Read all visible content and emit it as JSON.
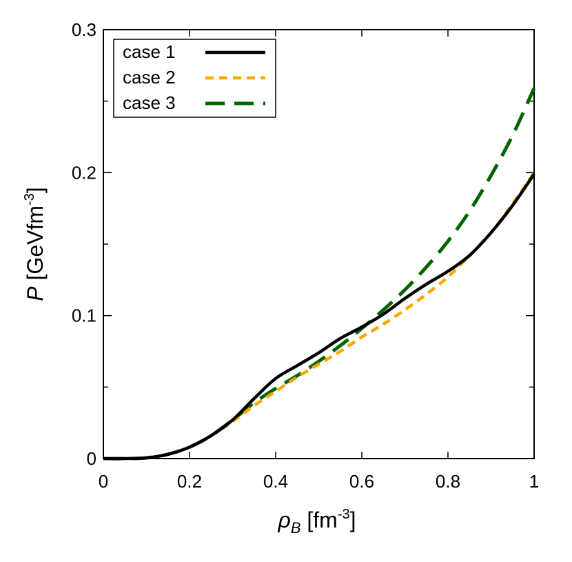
{
  "chart_data": {
    "type": "line",
    "title": "",
    "xlabel": {
      "symbol": "ρ",
      "subscript": "B",
      "unit_prefix": " [fm",
      "unit_exp": "-3",
      "unit_suffix": "]"
    },
    "ylabel": {
      "symbol": "P",
      "unit_prefix": " [GeVfm",
      "unit_exp": "-3",
      "unit_suffix": "]"
    },
    "xlim": [
      0,
      1
    ],
    "ylim": [
      0,
      0.3
    ],
    "xticks": [
      0,
      0.2,
      0.4,
      0.6,
      0.8,
      1
    ],
    "xtick_labels": [
      "0",
      "0.2",
      "0.4",
      "0.6",
      "0.8",
      "1"
    ],
    "yticks": [
      0,
      0.1,
      0.2,
      0.3
    ],
    "ytick_labels": [
      "0",
      "0.1",
      "0.2",
      "0.3"
    ],
    "grid": false,
    "legend_position": "top-left",
    "series": [
      {
        "name": "case 1",
        "color": "#000000",
        "style": "solid",
        "x": [
          0,
          0.05,
          0.1,
          0.15,
          0.2,
          0.25,
          0.3,
          0.35,
          0.4,
          0.45,
          0.5,
          0.55,
          0.6,
          0.65,
          0.7,
          0.75,
          0.8,
          0.85,
          0.9,
          0.95,
          1.0
        ],
        "y": [
          0,
          0,
          0.0005,
          0.003,
          0.008,
          0.016,
          0.027,
          0.042,
          0.056,
          0.065,
          0.074,
          0.084,
          0.092,
          0.101,
          0.112,
          0.122,
          0.131,
          0.142,
          0.158,
          0.177,
          0.199
        ]
      },
      {
        "name": "case 2",
        "color": "#ffa500",
        "style": "dotted",
        "x": [
          0,
          0.05,
          0.1,
          0.15,
          0.2,
          0.25,
          0.3,
          0.35,
          0.4,
          0.45,
          0.5,
          0.55,
          0.6,
          0.65,
          0.7,
          0.75,
          0.8,
          0.85,
          0.9,
          0.95,
          1.0
        ],
        "y": [
          0,
          0,
          0.0005,
          0.003,
          0.008,
          0.016,
          0.026,
          0.037,
          0.047,
          0.057,
          0.066,
          0.075,
          0.085,
          0.094,
          0.104,
          0.115,
          0.127,
          0.142,
          0.158,
          0.178,
          0.2
        ]
      },
      {
        "name": "case 3",
        "color": "#006400",
        "style": "dashed",
        "x": [
          0,
          0.05,
          0.1,
          0.15,
          0.2,
          0.25,
          0.3,
          0.35,
          0.4,
          0.45,
          0.5,
          0.55,
          0.6,
          0.65,
          0.7,
          0.75,
          0.8,
          0.85,
          0.9,
          0.95,
          1.0
        ],
        "y": [
          0,
          0,
          0.0005,
          0.003,
          0.008,
          0.016,
          0.027,
          0.039,
          0.049,
          0.058,
          0.068,
          0.079,
          0.091,
          0.104,
          0.118,
          0.134,
          0.152,
          0.173,
          0.198,
          0.226,
          0.259
        ]
      }
    ]
  }
}
